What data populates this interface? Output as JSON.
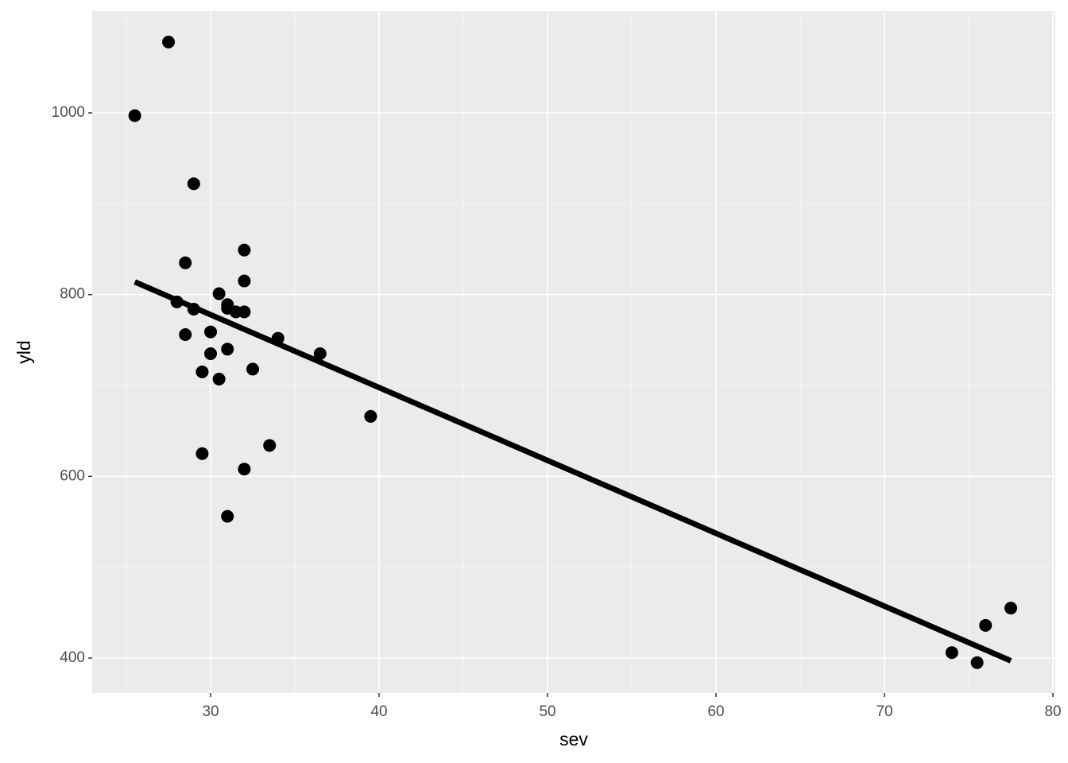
{
  "chart_data": {
    "type": "scatter",
    "xlabel": "sev",
    "ylabel": "yld",
    "x": [
      25.5,
      27.5,
      29,
      28.5,
      32,
      32,
      28,
      29,
      30.5,
      31,
      31,
      31.5,
      32,
      28.5,
      30,
      34,
      30,
      31,
      36.5,
      29.5,
      30.5,
      32.5,
      39.5,
      29.5,
      33.5,
      32,
      31,
      74,
      75.5,
      76,
      77.5
    ],
    "y": [
      997,
      1078,
      922,
      835,
      849,
      815,
      792,
      784,
      801,
      789,
      785,
      781,
      781,
      756,
      759,
      752,
      735,
      740,
      735,
      715,
      707,
      718,
      666,
      625,
      634,
      608,
      556,
      406,
      395,
      436,
      455
    ],
    "color": "#000000",
    "fit": {
      "x": [
        25.5,
        77.5
      ],
      "y": [
        814,
        397
      ],
      "color": "#000000"
    },
    "xlim": [
      22.97,
      80.14
    ],
    "ylim": [
      361.5,
      1112
    ],
    "xticks": [
      30,
      40,
      50,
      60,
      70,
      80
    ],
    "yticks": [
      400,
      600,
      800,
      1000
    ],
    "xminor": [
      25,
      35,
      45,
      55,
      65,
      75
    ],
    "yminor": [
      500,
      700,
      900,
      1100
    ],
    "grid": true
  }
}
